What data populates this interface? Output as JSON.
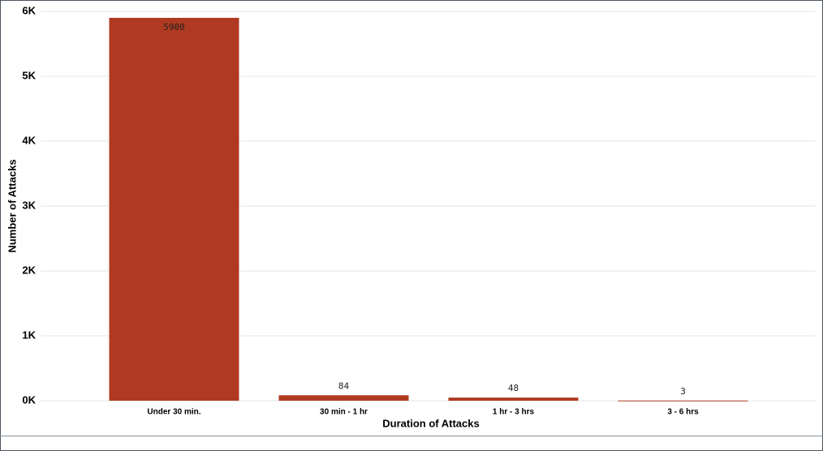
{
  "chart_data": {
    "type": "bar",
    "x_label": "Duration of Attacks",
    "y_label": "Number of Attacks",
    "categories": [
      "Under 30 min.",
      "30 min - 1 hr",
      "1 hr - 3 hrs",
      "3 - 6 hrs"
    ],
    "values": [
      5900,
      84,
      48,
      3
    ],
    "color": "#b03a21",
    "ylim": [
      0,
      6000
    ],
    "yticks": [
      {
        "value": 0,
        "label": "0K"
      },
      {
        "value": 1000,
        "label": "1K"
      },
      {
        "value": 2000,
        "label": "2K"
      },
      {
        "value": 3000,
        "label": "3K"
      },
      {
        "value": 4000,
        "label": "4K"
      },
      {
        "value": 5000,
        "label": "5K"
      },
      {
        "value": 6000,
        "label": "6K"
      }
    ],
    "grid": true
  }
}
